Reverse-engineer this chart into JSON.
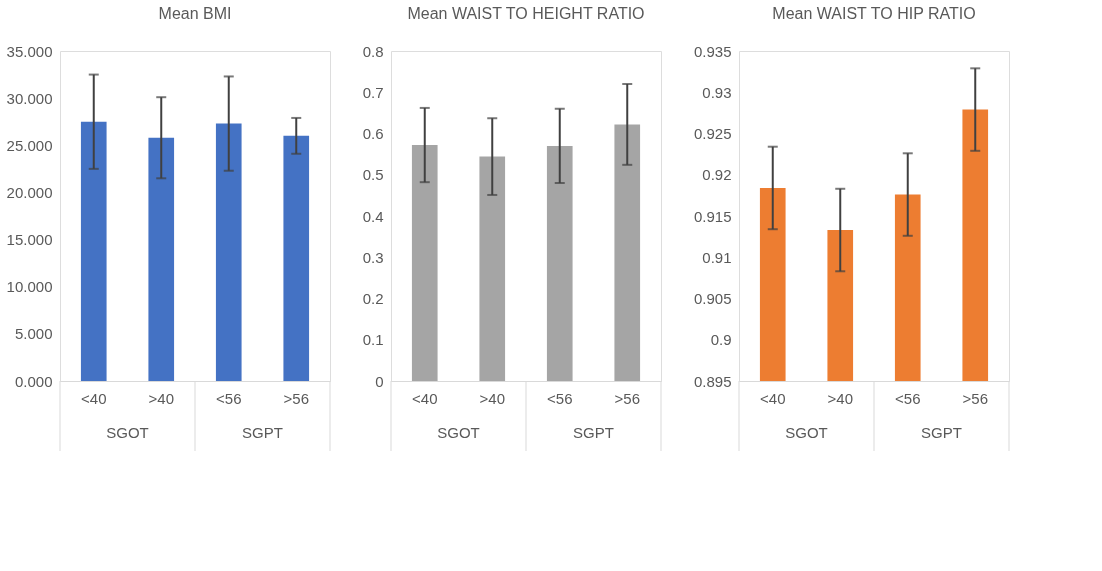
{
  "chart_data": [
    {
      "type": "bar",
      "title": "Mean BMI",
      "categories": [
        "<40",
        ">40",
        "<56",
        ">56"
      ],
      "values": [
        27.5,
        25.8,
        27.3,
        26.0
      ],
      "errors": [
        5.0,
        4.3,
        5.0,
        1.9
      ],
      "color": "#4472c4",
      "ylim": [
        0,
        35
      ],
      "yticks": [
        {
          "value": 0,
          "label": "0.000"
        },
        {
          "value": 5,
          "label": "5.000"
        },
        {
          "value": 10,
          "label": "10.000"
        },
        {
          "value": 15,
          "label": "15.000"
        },
        {
          "value": 20,
          "label": "20.000"
        },
        {
          "value": 25,
          "label": "25.000"
        },
        {
          "value": 30,
          "label": "30.000"
        },
        {
          "value": 35,
          "label": "35.000"
        }
      ],
      "grid": false,
      "annotations": [
        "SGOT",
        "SGPT"
      ]
    },
    {
      "type": "bar",
      "title": "Mean WAIST TO HEIGHT RATIO",
      "categories": [
        "<40",
        ">40",
        "<56",
        ">56"
      ],
      "values": [
        0.572,
        0.544,
        0.57,
        0.622
      ],
      "errors": [
        0.09,
        0.093,
        0.09,
        0.098
      ],
      "color": "#a5a5a5",
      "ylim": [
        0,
        0.8
      ],
      "yticks": [
        0,
        0.1,
        0.2,
        0.3,
        0.4,
        0.5,
        0.6,
        0.7,
        0.8
      ],
      "grid": false,
      "annotations": [
        "SGOT",
        "SGPT"
      ]
    },
    {
      "type": "bar",
      "title": "Mean WAIST TO HIP RATIO",
      "categories": [
        "<40",
        ">40",
        "<56",
        ">56"
      ],
      "values": [
        0.9184,
        0.9133,
        0.9176,
        0.9279
      ],
      "errors": [
        0.005,
        0.005,
        0.005,
        0.005
      ],
      "color": "#ed7d31",
      "ylim": [
        0.895,
        0.935
      ],
      "yticks": [
        0.895,
        0.9,
        0.905,
        0.91,
        0.915,
        0.92,
        0.925,
        0.93,
        0.935
      ],
      "grid": false,
      "annotations": [
        "SGOT",
        "SGPT"
      ]
    }
  ]
}
